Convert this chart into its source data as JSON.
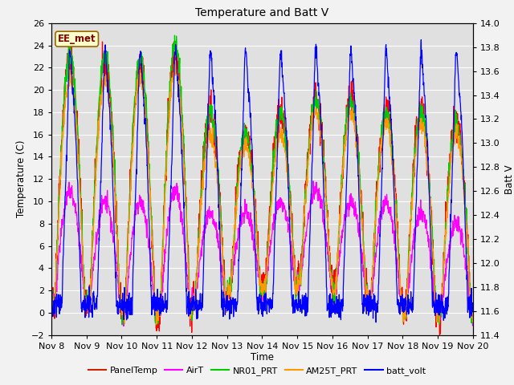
{
  "title": "Temperature and Batt V",
  "xlabel": "Time",
  "ylabel_left": "Temperature (C)",
  "ylabel_right": "Batt V",
  "annotation": "EE_met",
  "ylim_left": [
    -2,
    26
  ],
  "ylim_right": [
    11.4,
    14.0
  ],
  "x_ticks_labels": [
    "Nov 8",
    "Nov 9",
    "Nov 10",
    "Nov 11",
    "Nov 12",
    "Nov 13",
    "Nov 14",
    "Nov 15",
    "Nov 16",
    "Nov 17",
    "Nov 18",
    "Nov 19",
    "Nov 20"
  ],
  "series_colors": {
    "PanelTemp": "#ff0000",
    "AirT": "#ff00ff",
    "NR01_PRT": "#00cc00",
    "AM25T_PRT": "#ff9900",
    "batt_volt": "#0000ff"
  },
  "fig_facecolor": "#f2f2f2",
  "axes_facecolor": "#e0e0e0",
  "legend_colors": [
    "#cc2200",
    "#ff00ff",
    "#00cc00",
    "#ff9900",
    "#0000ff"
  ],
  "legend_labels": [
    "PanelTemp",
    "AirT",
    "NR01_PRT",
    "AM25T_PRT",
    "batt_volt"
  ],
  "linewidth": 0.9
}
